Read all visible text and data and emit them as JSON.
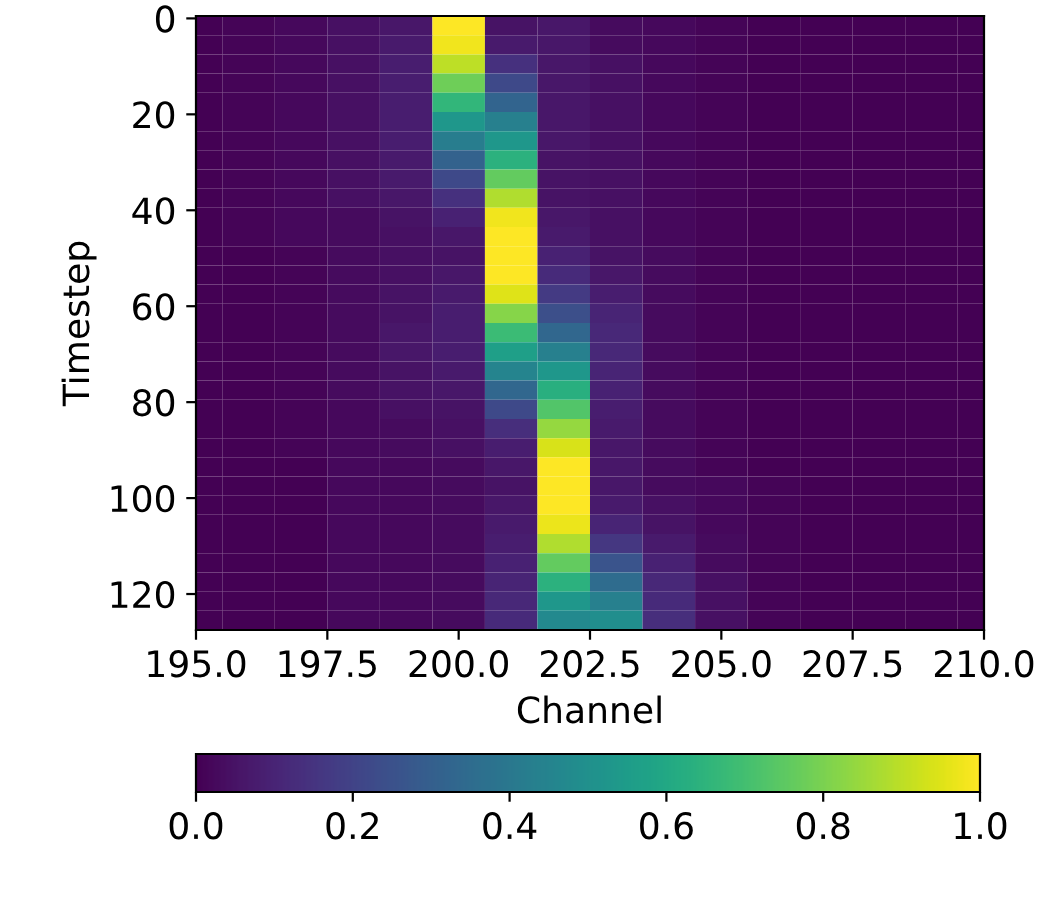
{
  "chart_data": {
    "type": "heatmap",
    "xlabel": "Channel",
    "ylabel": "Timestep",
    "x": [
      195,
      196,
      197,
      198,
      199,
      200,
      201,
      202,
      203,
      204,
      205,
      206,
      207,
      208,
      209,
      210
    ],
    "xlim": [
      195,
      210
    ],
    "xticks": [
      {
        "value": 195,
        "label": "195.0"
      },
      197.5,
      {
        "value": 200,
        "label": "200.0"
      },
      202.5,
      {
        "value": 205,
        "label": "205.0"
      },
      207.5,
      {
        "value": 210,
        "label": "210.0"
      }
    ],
    "ylim": [
      127.5,
      -0.5
    ],
    "yticks": [
      0,
      20,
      40,
      60,
      80,
      100,
      120
    ],
    "clim": [
      0,
      1
    ],
    "cticks": [
      {
        "value": 0,
        "label": "0.0"
      },
      0.2,
      0.4,
      0.6,
      0.8,
      {
        "value": 1,
        "label": "1.0"
      }
    ],
    "cells": [
      [
        0,
        0.01,
        0.02,
        0.04,
        0.06,
        1.0,
        0.05,
        0.06,
        0.03,
        0.02,
        0.01,
        0,
        0,
        0,
        0,
        0
      ],
      [
        0,
        0.01,
        0.02,
        0.04,
        0.07,
        0.98,
        0.07,
        0.06,
        0.03,
        0.02,
        0.01,
        0,
        0,
        0,
        0,
        0
      ],
      [
        0,
        0.01,
        0.02,
        0.04,
        0.08,
        0.9,
        0.14,
        0.06,
        0.04,
        0.02,
        0.01,
        0,
        0,
        0,
        0,
        0
      ],
      [
        0,
        0.01,
        0.02,
        0.04,
        0.08,
        0.78,
        0.22,
        0.06,
        0.04,
        0.02,
        0.01,
        0,
        0,
        0,
        0,
        0
      ],
      [
        0,
        0.01,
        0.02,
        0.04,
        0.08,
        0.66,
        0.32,
        0.06,
        0.04,
        0.02,
        0.01,
        0,
        0,
        0,
        0,
        0
      ],
      [
        0,
        0.01,
        0.02,
        0.04,
        0.08,
        0.53,
        0.43,
        0.06,
        0.04,
        0.02,
        0.01,
        0,
        0,
        0,
        0,
        0
      ],
      [
        0,
        0.01,
        0.02,
        0.04,
        0.08,
        0.42,
        0.53,
        0.06,
        0.04,
        0.02,
        0.01,
        0,
        0,
        0,
        0,
        0
      ],
      [
        0,
        0.01,
        0.02,
        0.04,
        0.07,
        0.31,
        0.64,
        0.05,
        0.04,
        0.02,
        0.01,
        0,
        0,
        0,
        0,
        0
      ],
      [
        0,
        0.01,
        0.02,
        0.04,
        0.07,
        0.22,
        0.76,
        0.05,
        0.04,
        0.02,
        0.01,
        0,
        0,
        0,
        0,
        0
      ],
      [
        0,
        0.01,
        0.02,
        0.04,
        0.06,
        0.14,
        0.88,
        0.05,
        0.04,
        0.02,
        0.01,
        0,
        0,
        0,
        0,
        0
      ],
      [
        0,
        0.01,
        0.02,
        0.03,
        0.05,
        0.09,
        0.98,
        0.06,
        0.04,
        0.02,
        0.01,
        0,
        0,
        0,
        0,
        0
      ],
      [
        0,
        0.01,
        0.02,
        0.03,
        0.04,
        0.06,
        1.0,
        0.07,
        0.04,
        0.02,
        0.01,
        0,
        0,
        0,
        0,
        0
      ],
      [
        0,
        0,
        0.01,
        0.03,
        0.04,
        0.05,
        1.0,
        0.09,
        0.05,
        0.03,
        0.01,
        0,
        0,
        0,
        0,
        0
      ],
      [
        0,
        0,
        0.01,
        0.03,
        0.04,
        0.06,
        1.0,
        0.12,
        0.06,
        0.03,
        0.01,
        0,
        0,
        0,
        0,
        0
      ],
      [
        0,
        0,
        0.01,
        0.03,
        0.05,
        0.07,
        0.95,
        0.17,
        0.08,
        0.03,
        0.01,
        0,
        0,
        0,
        0,
        0
      ],
      [
        0,
        0,
        0.01,
        0.03,
        0.05,
        0.08,
        0.82,
        0.24,
        0.1,
        0.03,
        0.01,
        0,
        0,
        0,
        0,
        0
      ],
      [
        0,
        0,
        0.01,
        0.03,
        0.06,
        0.08,
        0.68,
        0.33,
        0.11,
        0.03,
        0.01,
        0,
        0,
        0,
        0,
        0
      ],
      [
        0,
        0,
        0.01,
        0.03,
        0.06,
        0.08,
        0.56,
        0.43,
        0.11,
        0.03,
        0.01,
        0,
        0,
        0,
        0,
        0
      ],
      [
        0,
        0,
        0.01,
        0.03,
        0.05,
        0.07,
        0.45,
        0.53,
        0.1,
        0.03,
        0.01,
        0,
        0,
        0,
        0,
        0
      ],
      [
        0,
        0,
        0.01,
        0.03,
        0.05,
        0.06,
        0.33,
        0.63,
        0.09,
        0.03,
        0.01,
        0,
        0,
        0,
        0,
        0
      ],
      [
        0,
        0,
        0.01,
        0.02,
        0.04,
        0.05,
        0.22,
        0.73,
        0.08,
        0.03,
        0.01,
        0,
        0,
        0,
        0,
        0
      ],
      [
        0,
        0,
        0.01,
        0.02,
        0.03,
        0.04,
        0.13,
        0.84,
        0.07,
        0.03,
        0.01,
        0,
        0,
        0,
        0,
        0
      ],
      [
        0,
        0,
        0.01,
        0.02,
        0.03,
        0.04,
        0.08,
        0.94,
        0.06,
        0.03,
        0.01,
        0,
        0,
        0,
        0,
        0
      ],
      [
        0,
        0,
        0,
        0.02,
        0.02,
        0.03,
        0.06,
        1.0,
        0.06,
        0.03,
        0.01,
        0,
        0,
        0,
        0,
        0
      ],
      [
        0,
        0,
        0,
        0.02,
        0.02,
        0.03,
        0.05,
        1.0,
        0.06,
        0.03,
        0.02,
        0.01,
        0,
        0,
        0,
        0
      ],
      [
        0,
        0,
        0,
        0.02,
        0.02,
        0.03,
        0.06,
        1.0,
        0.07,
        0.04,
        0.02,
        0.01,
        0,
        0,
        0,
        0
      ],
      [
        0,
        0,
        0,
        0.02,
        0.02,
        0.03,
        0.07,
        0.97,
        0.1,
        0.05,
        0.02,
        0.01,
        0,
        0,
        0,
        0
      ],
      [
        0,
        0,
        0,
        0.02,
        0.02,
        0.03,
        0.08,
        0.88,
        0.16,
        0.07,
        0.03,
        0.01,
        0,
        0,
        0,
        0
      ],
      [
        0,
        0,
        0,
        0.02,
        0.02,
        0.03,
        0.09,
        0.76,
        0.26,
        0.09,
        0.03,
        0.01,
        0,
        0,
        0,
        0
      ],
      [
        0,
        0,
        0,
        0.02,
        0.02,
        0.03,
        0.1,
        0.64,
        0.35,
        0.11,
        0.04,
        0.01,
        0,
        0,
        0,
        0
      ],
      [
        0,
        0,
        0,
        0.02,
        0.02,
        0.03,
        0.11,
        0.53,
        0.43,
        0.12,
        0.04,
        0.01,
        0,
        0,
        0,
        0
      ],
      [
        0,
        0,
        0,
        0.02,
        0.02,
        0.03,
        0.12,
        0.47,
        0.49,
        0.13,
        0.04,
        0.01,
        0,
        0,
        0,
        0
      ]
    ]
  }
}
